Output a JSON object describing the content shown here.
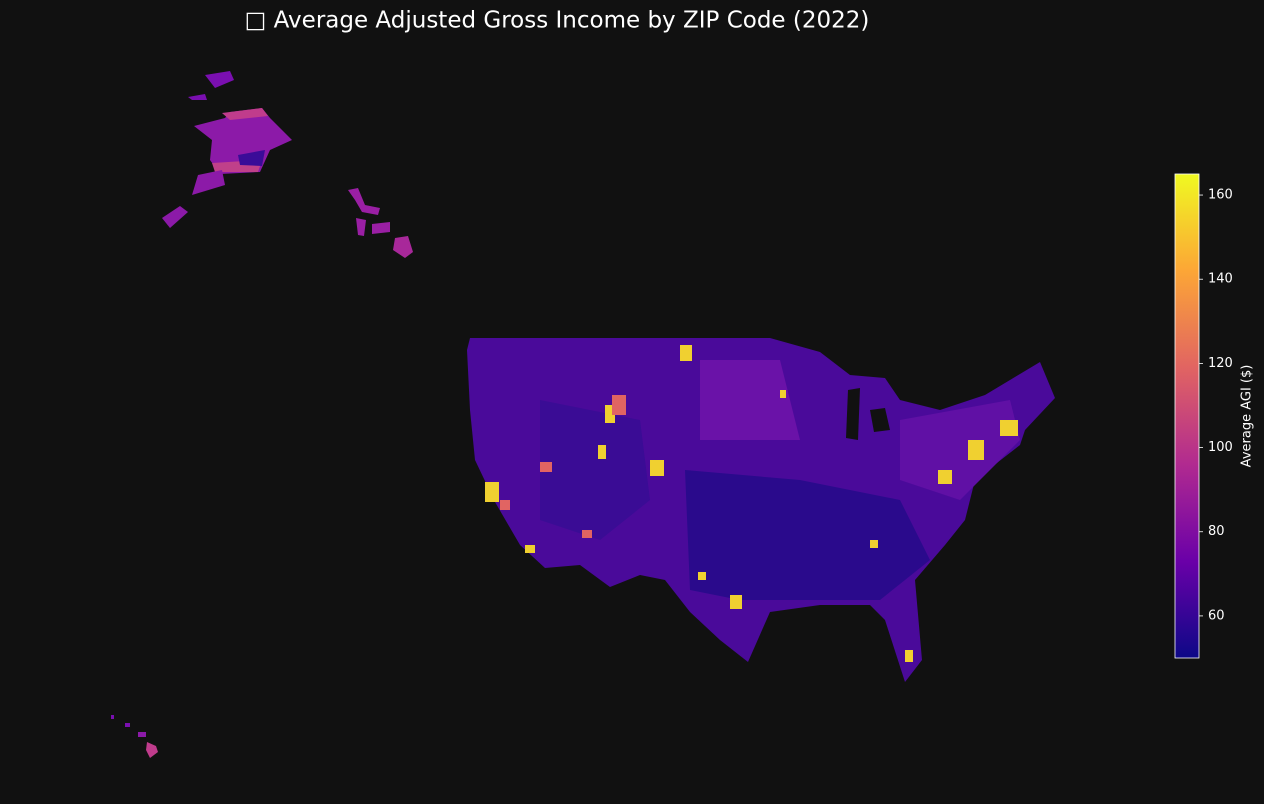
{
  "title": "□ Average Adjusted Gross Income by ZIP Code (2022)",
  "colorbar": {
    "label": "Average AGI ($)",
    "range": [
      50,
      165
    ],
    "ticks": [
      60,
      80,
      100,
      120,
      140,
      160
    ],
    "colors": [
      "#0d0887",
      "#6a00a8",
      "#b12a90",
      "#e16462",
      "#fca636",
      "#f0f921"
    ]
  }
}
